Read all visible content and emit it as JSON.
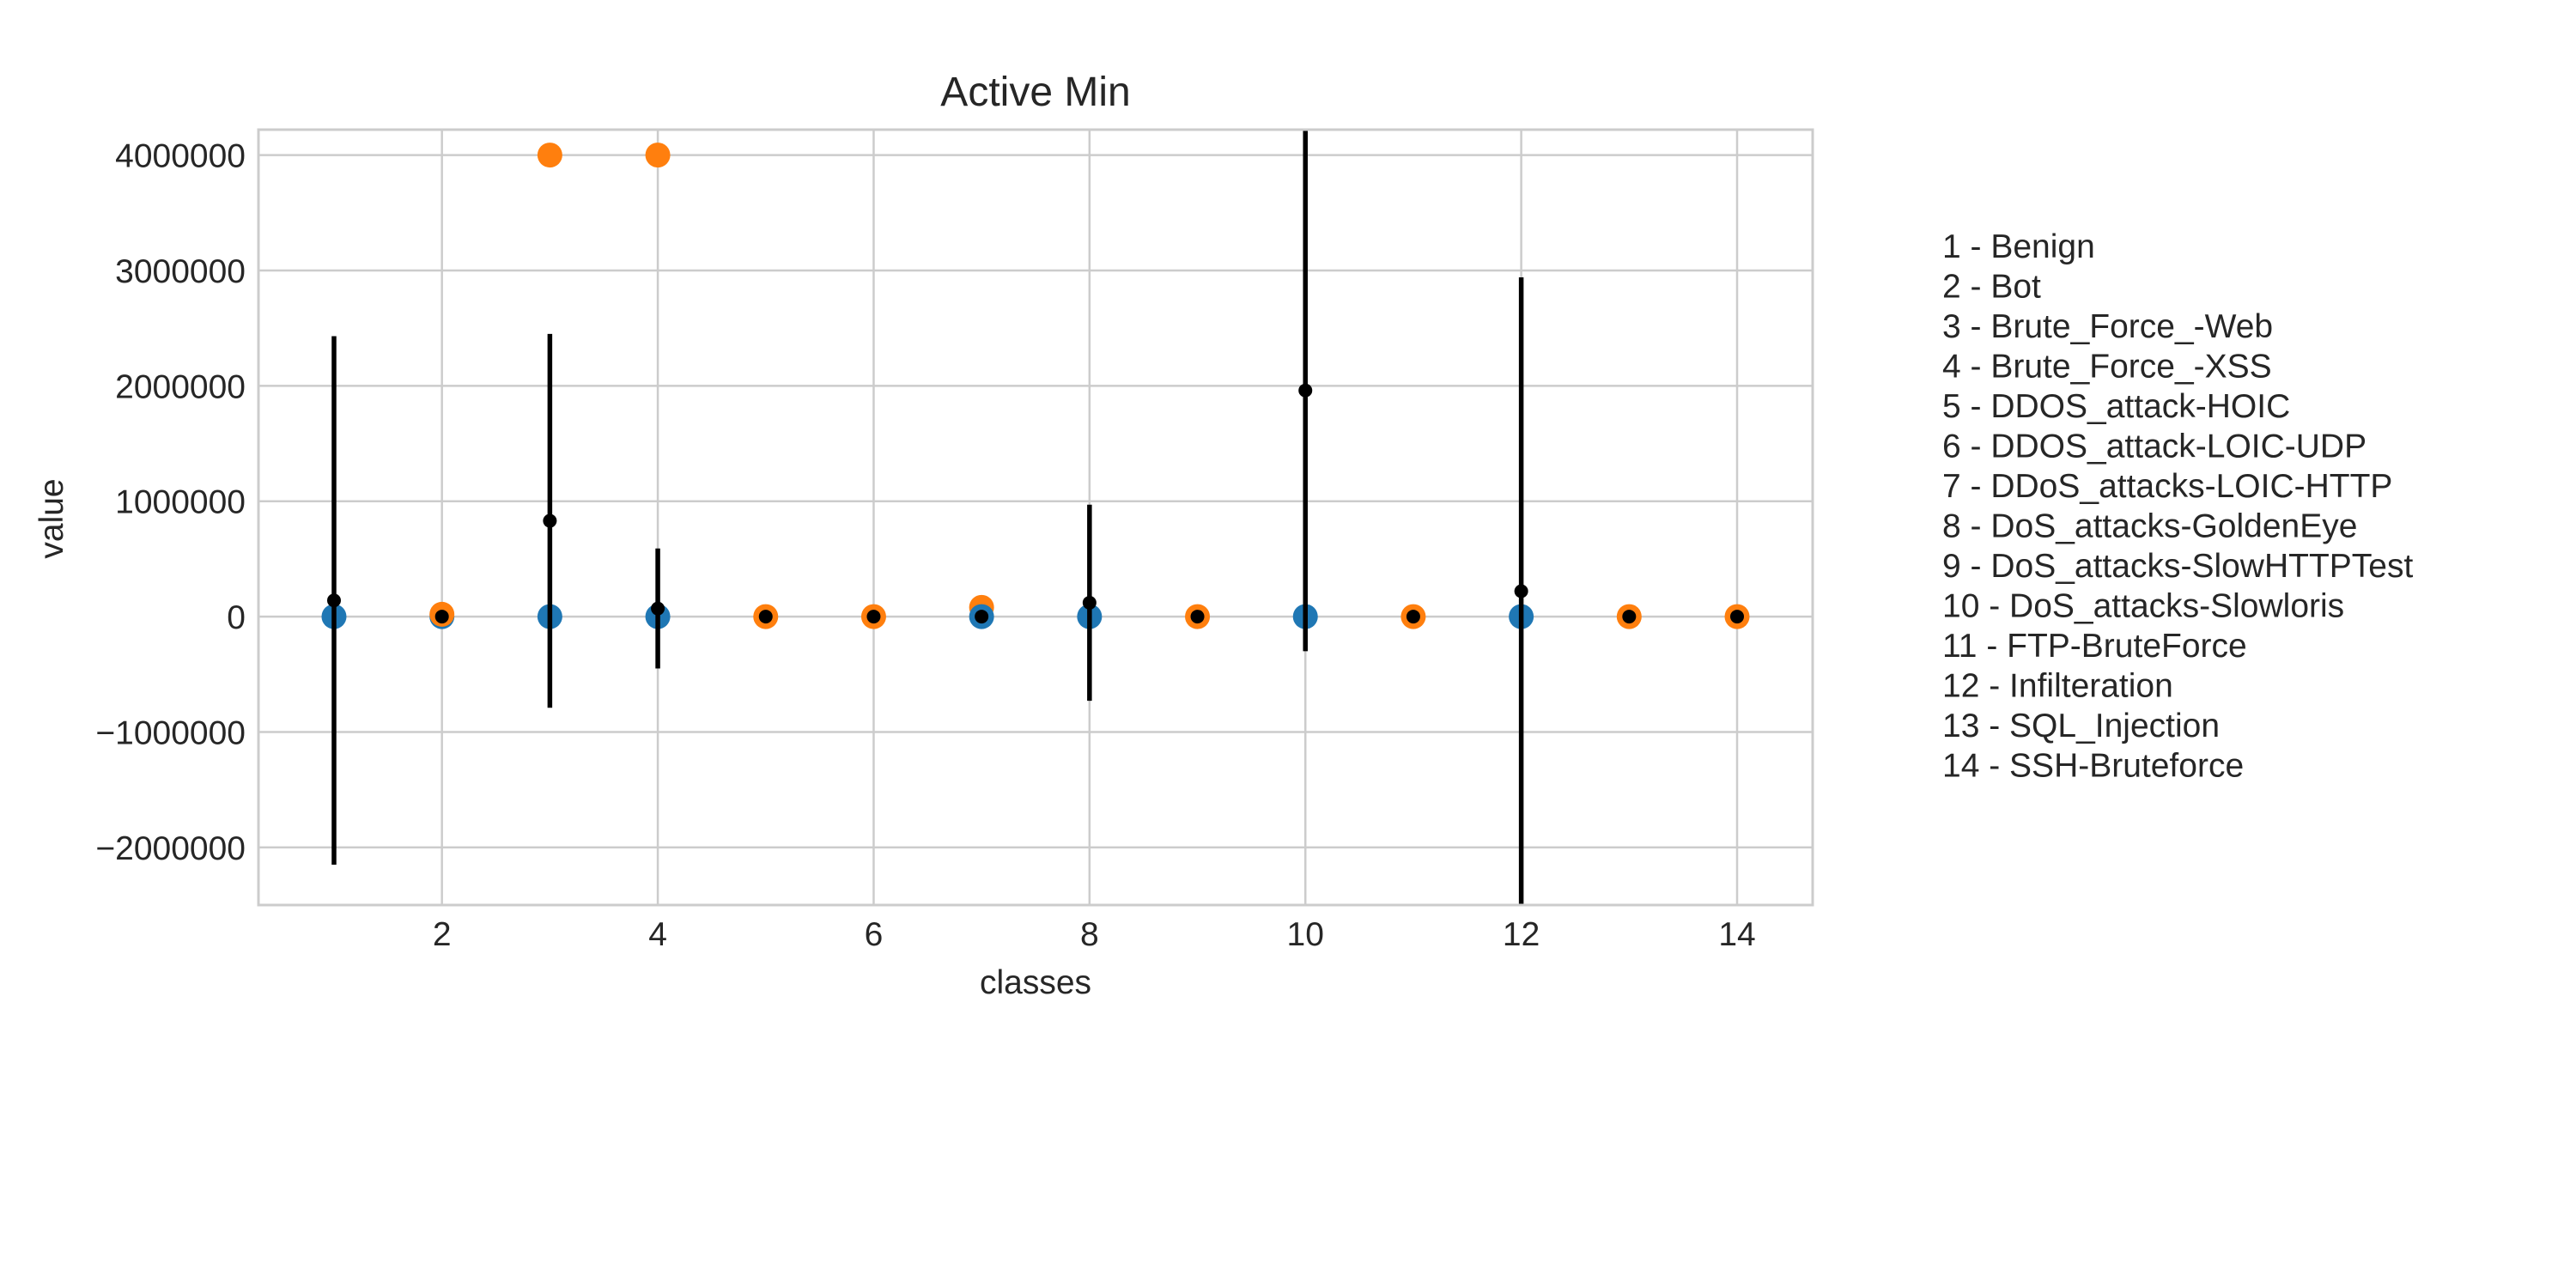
{
  "chart_data": {
    "type": "scatter",
    "title": "Active Min",
    "xlabel": "classes",
    "ylabel": "value",
    "xlim": [
      0.3,
      14.7
    ],
    "ylim": [
      -2500000,
      4220000
    ],
    "grid": true,
    "x_ticks": [
      2,
      4,
      6,
      8,
      10,
      12,
      14
    ],
    "x_tick_labels": [
      "2",
      "4",
      "6",
      "8",
      "10",
      "12",
      "14"
    ],
    "y_ticks": [
      -2000000,
      -1000000,
      0,
      1000000,
      2000000,
      3000000,
      4000000
    ],
    "y_tick_labels": [
      "−2000000",
      "−1000000",
      "0",
      "1000000",
      "2000000",
      "3000000",
      "4000000"
    ],
    "colors": {
      "blue": "#1f77b4",
      "orange": "#ff7f0e",
      "error": "#000000"
    },
    "points": [
      {
        "x": 1,
        "y": 0,
        "color": "#1f77b4"
      },
      {
        "x": 2,
        "y": 0,
        "color": "#1f77b4"
      },
      {
        "x": 2,
        "y": 20000,
        "color": "#ff7f0e"
      },
      {
        "x": 3,
        "y": 0,
        "color": "#1f77b4"
      },
      {
        "x": 3,
        "y": 4000000,
        "color": "#ff7f0e"
      },
      {
        "x": 4,
        "y": 0,
        "color": "#1f77b4"
      },
      {
        "x": 4,
        "y": 4000000,
        "color": "#ff7f0e"
      },
      {
        "x": 5,
        "y": 0,
        "color": "#ff7f0e"
      },
      {
        "x": 6,
        "y": 0,
        "color": "#ff7f0e"
      },
      {
        "x": 7,
        "y": 80000,
        "color": "#ff7f0e"
      },
      {
        "x": 7,
        "y": 0,
        "color": "#1f77b4"
      },
      {
        "x": 8,
        "y": 0,
        "color": "#1f77b4"
      },
      {
        "x": 9,
        "y": 0,
        "color": "#ff7f0e"
      },
      {
        "x": 10,
        "y": 0,
        "color": "#1f77b4"
      },
      {
        "x": 11,
        "y": 0,
        "color": "#ff7f0e"
      },
      {
        "x": 12,
        "y": 0,
        "color": "#1f77b4"
      },
      {
        "x": 13,
        "y": 0,
        "color": "#ff7f0e"
      },
      {
        "x": 14,
        "y": 0,
        "color": "#ff7f0e"
      }
    ],
    "error_bars": [
      {
        "x": 1,
        "mean": 140000,
        "low": -2150000,
        "high": 2430000
      },
      {
        "x": 2,
        "mean": 0,
        "low": 0,
        "high": 0
      },
      {
        "x": 3,
        "mean": 830000,
        "low": -790000,
        "high": 2450000
      },
      {
        "x": 4,
        "mean": 70000,
        "low": -450000,
        "high": 590000
      },
      {
        "x": 5,
        "mean": 0,
        "low": 0,
        "high": 0
      },
      {
        "x": 6,
        "mean": 0,
        "low": 0,
        "high": 0
      },
      {
        "x": 7,
        "mean": 0,
        "low": 0,
        "high": 0
      },
      {
        "x": 8,
        "mean": 120000,
        "low": -730000,
        "high": 970000
      },
      {
        "x": 9,
        "mean": 0,
        "low": 0,
        "high": 0
      },
      {
        "x": 10,
        "mean": 1960000,
        "low": -300000,
        "high": 4220000
      },
      {
        "x": 11,
        "mean": 0,
        "low": 0,
        "high": 0
      },
      {
        "x": 12,
        "mean": 220000,
        "low": -2500000,
        "high": 2940000
      },
      {
        "x": 13,
        "mean": 0,
        "low": 0,
        "high": 0
      },
      {
        "x": 14,
        "mean": 0,
        "low": 0,
        "high": 0
      }
    ],
    "legend_position": "right",
    "legend_entries": [
      "1 - Benign",
      "2 - Bot",
      "3 - Brute_Force_-Web",
      "4 - Brute_Force_-XSS",
      "5 - DDOS_attack-HOIC",
      "6 - DDOS_attack-LOIC-UDP",
      "7 - DDoS_attacks-LOIC-HTTP",
      "8 - DoS_attacks-GoldenEye",
      "9 - DoS_attacks-SlowHTTPTest",
      "10 - DoS_attacks-Slowloris",
      "11 - FTP-BruteForce",
      "12 - Infilteration",
      "13 - SQL_Injection",
      "14 - SSH-Bruteforce"
    ]
  }
}
